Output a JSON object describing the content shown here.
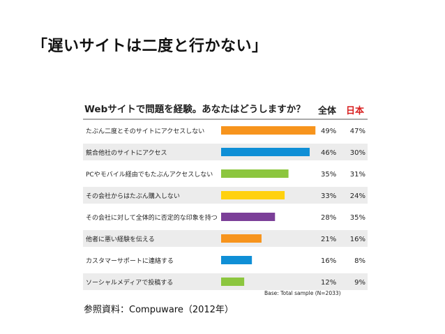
{
  "slide": {
    "title": "「遅いサイトは二度と行かない」",
    "source": "参照資料：Compuware（2012年）"
  },
  "chart_data": {
    "type": "bar",
    "title": "Webサイトで問題を経験。あなたはどうしますか？",
    "columns": [
      "全体",
      "日本"
    ],
    "column_colors": [
      "#222222",
      "#d81e1e"
    ],
    "footnote": "Base: Total sample (N=2033)",
    "categories": [
      "たぶん二度とそのサイトにアクセスしない",
      "競合他社のサイトにアクセス",
      "PCやモバイル経由でもたぶんアクセスしない",
      "その会社からはたぶん購入しない",
      "その会社に対して全体的に否定的な印象を持つ",
      "他者に悪い経験を伝える",
      "カスタマーサポートに連絡する",
      "ソーシャルメディアで投稿する"
    ],
    "series": [
      {
        "name": "全体",
        "values": [
          49,
          46,
          35,
          33,
          28,
          21,
          16,
          12
        ],
        "labels": [
          "49%",
          "46%",
          "35%",
          "33%",
          "28%",
          "21%",
          "16%",
          "12%"
        ]
      },
      {
        "name": "日本",
        "values": [
          47,
          30,
          31,
          24,
          35,
          16,
          8,
          9
        ],
        "labels": [
          "47%",
          "30%",
          "31%",
          "24%",
          "35%",
          "16%",
          "8%",
          "9%"
        ]
      }
    ],
    "bar_colors": [
      "#f7941d",
      "#0f8fd6",
      "#8cc63f",
      "#ffd10f",
      "#7b3f98",
      "#f7941d",
      "#0f8fd6",
      "#8cc63f"
    ],
    "row_shading": "alternating gray",
    "xlim": [
      0,
      50
    ],
    "grid": false
  }
}
